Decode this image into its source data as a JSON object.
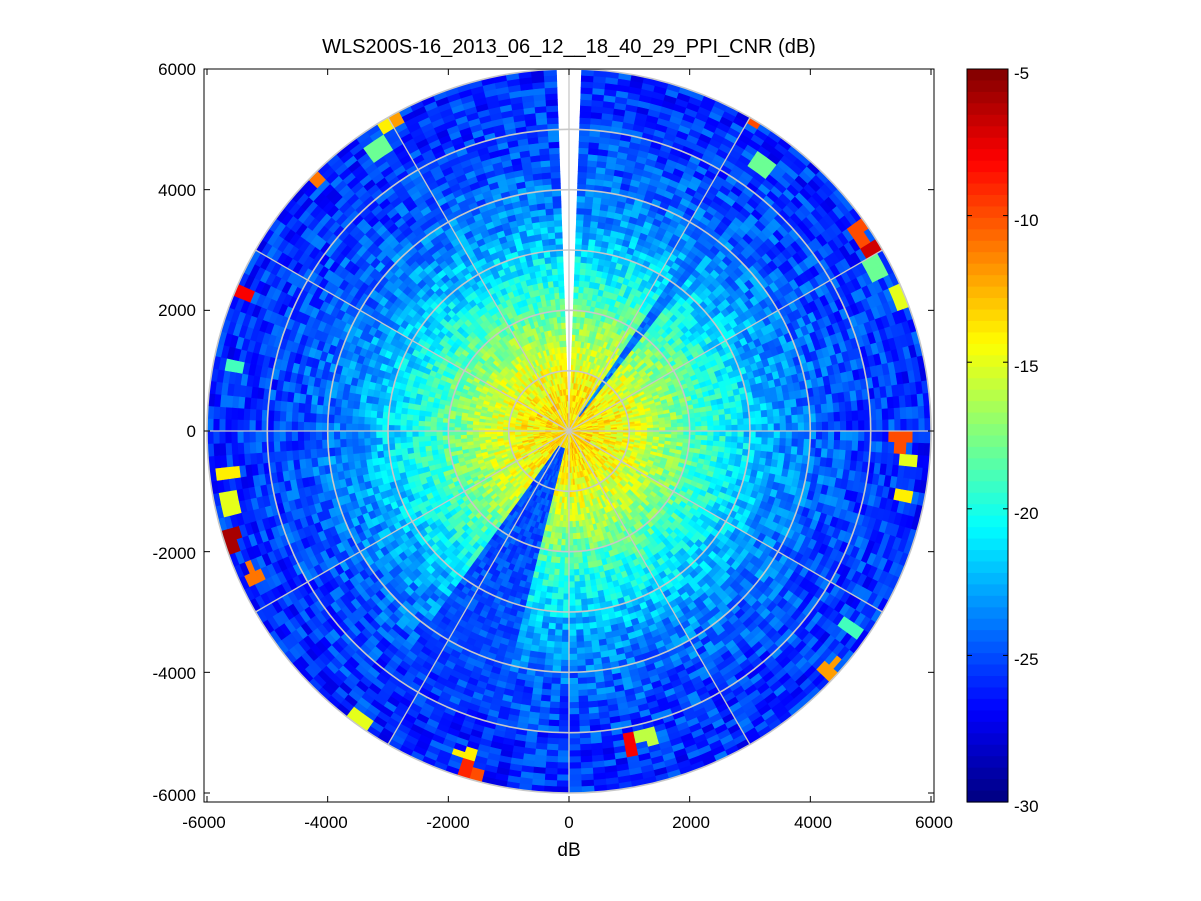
{
  "chart_data": {
    "type": "heatmap",
    "subtype": "polar-ppi",
    "title": "WLS200S-16_2013_06_12__18_40_29_PPI_CNR (dB)",
    "xlabel": "dB",
    "ylabel": "",
    "xlim": [
      -6000,
      6000
    ],
    "ylim": [
      -6000,
      6000
    ],
    "xticks": [
      "-6000",
      "-4000",
      "-2000",
      "0",
      "2000",
      "4000",
      "6000"
    ],
    "yticks": [
      "6000",
      "4000",
      "2000",
      "0",
      "-2000",
      "-4000",
      "-6000"
    ],
    "x_tick_values": [
      -6000,
      -4000,
      -2000,
      0,
      2000,
      4000,
      6000
    ],
    "y_tick_values": [
      6000,
      4000,
      2000,
      0,
      -2000,
      -4000,
      -6000
    ],
    "max_range": 6000,
    "range_rings": [
      1000,
      2000,
      3000,
      4000,
      5000,
      6000
    ],
    "spoke_angles_deg": [
      0,
      30,
      60,
      90,
      120,
      150,
      180,
      210,
      240,
      270,
      300,
      330
    ],
    "grid": true,
    "colormap": "jet",
    "colorbar": {
      "min": -30,
      "max": -5,
      "ticks": [
        "-5",
        "-10",
        "-15",
        "-20",
        "-25",
        "-30"
      ],
      "tick_values": [
        -5,
        -10,
        -15,
        -20,
        -25,
        -30
      ],
      "position": "right"
    },
    "field_model": {
      "center_value": -13.5,
      "far_value": -26,
      "decay_range": 2900,
      "noise_amplitude": 1.8
    },
    "blank_sector_deg": [
      -2,
      2
    ],
    "low_sectors": [
      {
        "from_deg": 195,
        "to_deg": 215,
        "value": -25
      },
      {
        "from_deg": 35,
        "to_deg": 37,
        "value": -24
      }
    ],
    "hot_spots": [
      {
        "x": -1700,
        "y": -5400,
        "value": -14
      },
      {
        "x": -1750,
        "y": -5650,
        "value": -9
      },
      {
        "x": -1550,
        "y": -5800,
        "value": -10
      },
      {
        "x": -3500,
        "y": -4800,
        "value": -15
      },
      {
        "x": -5600,
        "y": -1800,
        "value": -6
      },
      {
        "x": -5650,
        "y": -1200,
        "value": -15
      },
      {
        "x": -5650,
        "y": -700,
        "value": -14
      },
      {
        "x": -5250,
        "y": -2400,
        "value": -11
      },
      {
        "x": -5450,
        "y": 2300,
        "value": -8
      },
      {
        "x": -5550,
        "y": 1100,
        "value": -19
      },
      {
        "x": -4250,
        "y": 4200,
        "value": -11
      },
      {
        "x": -3100,
        "y": 5100,
        "value": -14
      },
      {
        "x": -2900,
        "y": 5200,
        "value": -12
      },
      {
        "x": -3150,
        "y": 4700,
        "value": -18
      },
      {
        "x": 3100,
        "y": 5200,
        "value": -10
      },
      {
        "x": 3200,
        "y": 4400,
        "value": -18
      },
      {
        "x": 4800,
        "y": 3300,
        "value": -10
      },
      {
        "x": 5000,
        "y": 3000,
        "value": -7
      },
      {
        "x": 5100,
        "y": 2700,
        "value": -18
      },
      {
        "x": 5500,
        "y": 2200,
        "value": -15
      },
      {
        "x": 5500,
        "y": -150,
        "value": -10
      },
      {
        "x": 5600,
        "y": -500,
        "value": -15
      },
      {
        "x": 5550,
        "y": -1100,
        "value": -14
      },
      {
        "x": 4650,
        "y": -3300,
        "value": -19
      },
      {
        "x": 4300,
        "y": -3950,
        "value": -12
      },
      {
        "x": 1000,
        "y": -5200,
        "value": -8
      },
      {
        "x": 1300,
        "y": -5050,
        "value": -16
      }
    ]
  }
}
